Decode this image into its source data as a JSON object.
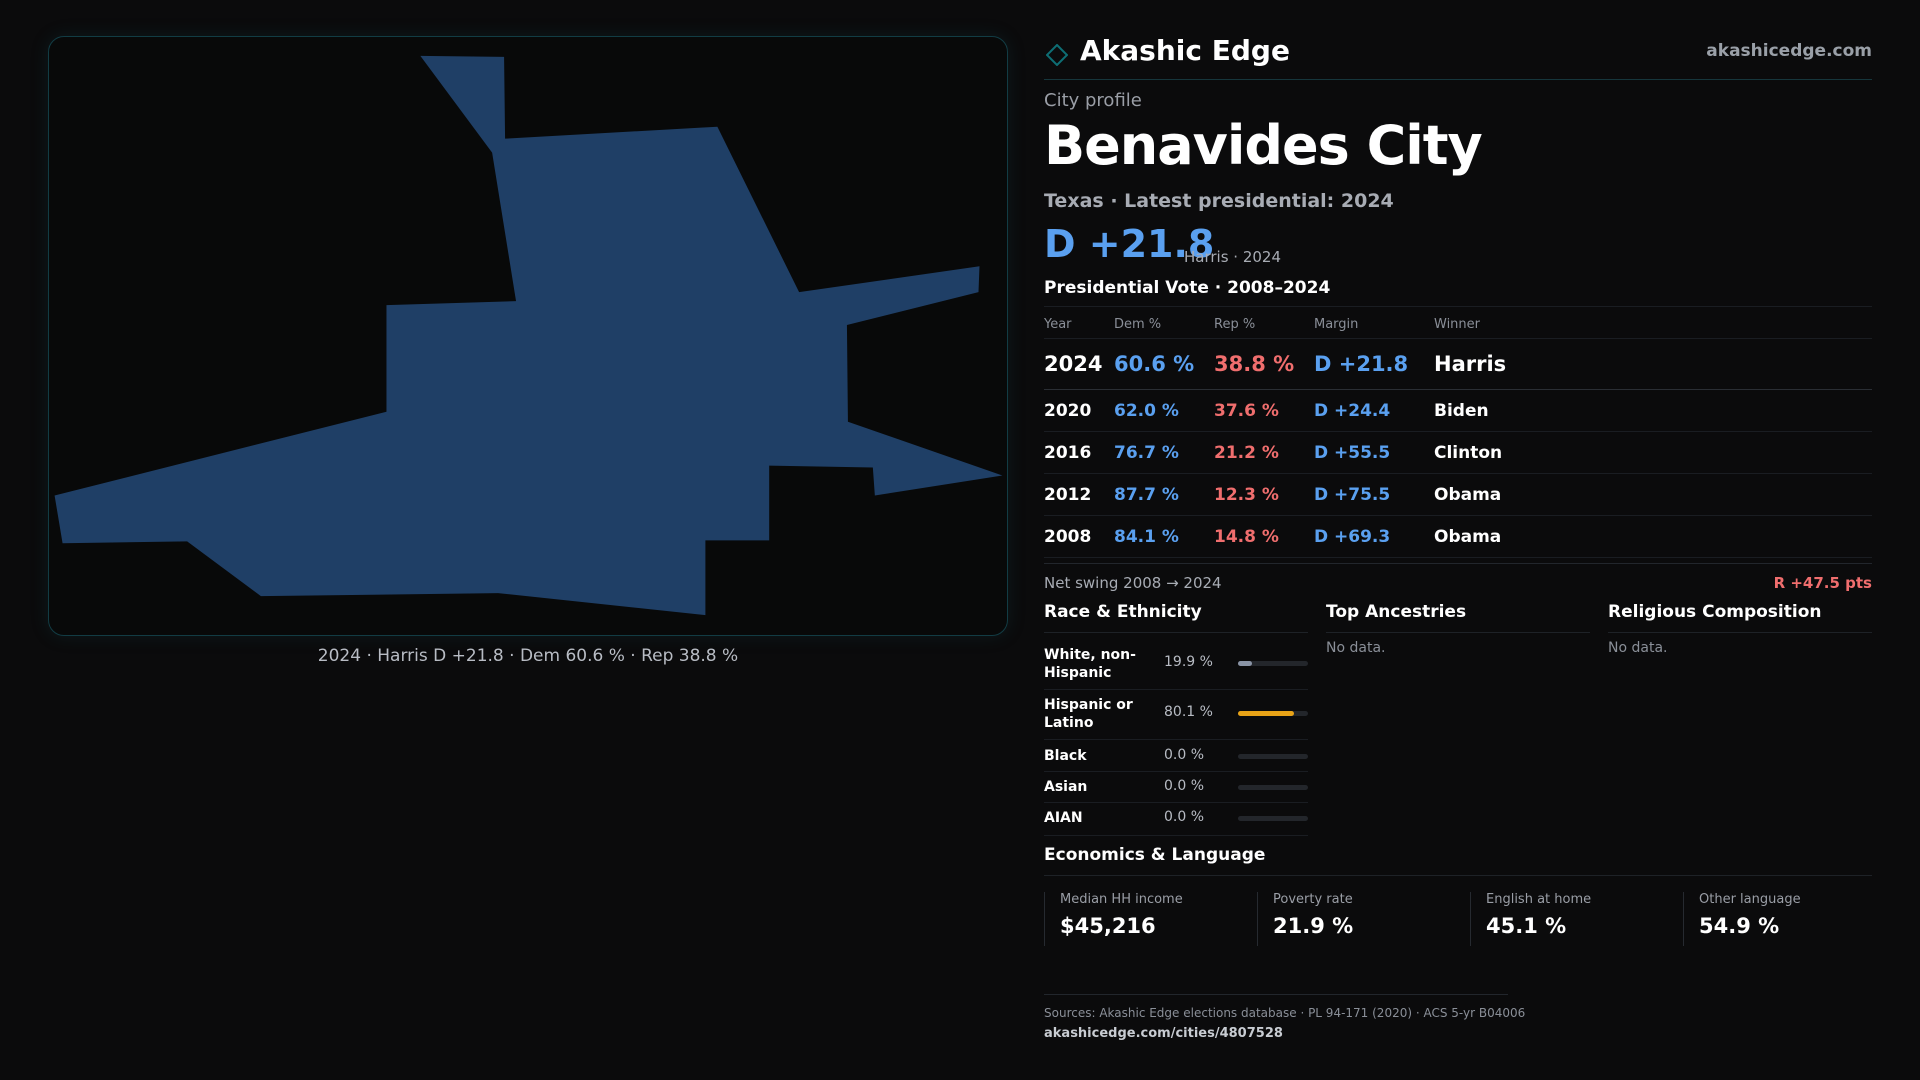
{
  "brand": {
    "name": "Akashic Edge",
    "url": "akashicedge.com",
    "accent": "#0e6e74"
  },
  "map": {
    "fill": "#1f3f66",
    "caption": "2024 · Harris D +21.8 · Dem 60.6 % · Rep 38.8 %"
  },
  "profile": {
    "kicker": "City profile",
    "title": "Benavides City",
    "subline": "Texas · Latest presidential: 2024",
    "margin": "D +21.8",
    "margin_note": "Harris · 2024"
  },
  "votes": {
    "title": "Presidential Vote · 2008–2024",
    "headers": {
      "year": "Year",
      "dem": "Dem %",
      "rep": "Rep %",
      "margin": "Margin",
      "winner": "Winner"
    },
    "rows": [
      {
        "year": "2024",
        "dem": "60.6 %",
        "rep": "38.8 %",
        "margin": "D +21.8",
        "winner": "Harris"
      },
      {
        "year": "2020",
        "dem": "62.0 %",
        "rep": "37.6 %",
        "margin": "D +24.4",
        "winner": "Biden"
      },
      {
        "year": "2016",
        "dem": "76.7 %",
        "rep": "21.2 %",
        "margin": "D +55.5",
        "winner": "Clinton"
      },
      {
        "year": "2012",
        "dem": "87.7 %",
        "rep": "12.3 %",
        "margin": "D +75.5",
        "winner": "Obama"
      },
      {
        "year": "2008",
        "dem": "84.1 %",
        "rep": "14.8 %",
        "margin": "D +69.3",
        "winner": "Obama"
      }
    ],
    "colors": {
      "dem": "#5aa0f0",
      "rep": "#f06e6e"
    }
  },
  "swing": {
    "label": "Net swing 2008 → 2024",
    "value": "R +47.5 pts"
  },
  "race": {
    "title": "Race & Ethnicity",
    "rows": [
      {
        "label": "White, non-Hispanic",
        "pct": "19.9 %",
        "fraction": 0.199,
        "color": "#8a94a6"
      },
      {
        "label": "Hispanic or Latino",
        "pct": "80.1 %",
        "fraction": 0.801,
        "color": "#e8a317"
      },
      {
        "label": "Black",
        "pct": "0.0 %",
        "fraction": 0.0,
        "color": "#8a94a6"
      },
      {
        "label": "Asian",
        "pct": "0.0 %",
        "fraction": 0.0,
        "color": "#8a94a6"
      },
      {
        "label": "AIAN",
        "pct": "0.0 %",
        "fraction": 0.0,
        "color": "#8a94a6"
      }
    ]
  },
  "ancestries": {
    "title": "Top Ancestries",
    "empty": "No data."
  },
  "religion": {
    "title": "Religious Composition",
    "empty": "No data."
  },
  "economics": {
    "title": "Economics & Language",
    "cells": [
      {
        "label": "Median HH income",
        "value": "$45,216"
      },
      {
        "label": "Poverty rate",
        "value": "21.9 %"
      },
      {
        "label": "English at home",
        "value": "45.1 %"
      },
      {
        "label": "Other language",
        "value": "54.9 %"
      }
    ]
  },
  "footer": {
    "sources": "Sources: Akashic Edge elections database · PL 94-171 (2020) · ACS 5-yr B04006",
    "url": "akashicedge.com/cities/4807528"
  }
}
